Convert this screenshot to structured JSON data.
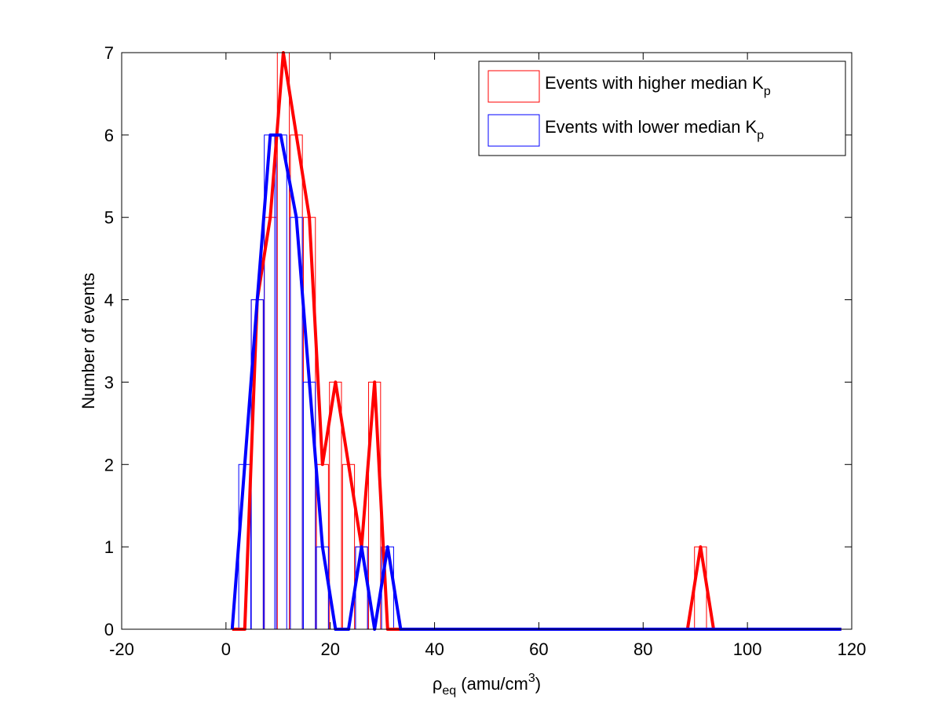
{
  "chart_data": {
    "type": "bar",
    "xlabel": {
      "main": "ρ",
      "sub": "eq",
      "rest": " (amu/cm",
      "sup": "3",
      "close": ")"
    },
    "ylabel": "Number of events",
    "xlim": [
      -20,
      120
    ],
    "ylim": [
      0,
      7
    ],
    "xticks": [
      "-20",
      "0",
      "20",
      "40",
      "60",
      "80",
      "100",
      "120"
    ],
    "yticks": [
      "0",
      "1",
      "2",
      "3",
      "4",
      "5",
      "6",
      "7"
    ],
    "grid": false,
    "legend_position": "top-right",
    "series": [
      {
        "name": {
          "main": "Events with higher median K",
          "sub": "p"
        },
        "color": "#ff0000",
        "bins": [
          {
            "x": 1.2,
            "y": 0
          },
          {
            "x": 3.6,
            "y": 0
          },
          {
            "x": 6.0,
            "y": 4
          },
          {
            "x": 8.5,
            "y": 5
          },
          {
            "x": 11.0,
            "y": 7
          },
          {
            "x": 13.5,
            "y": 6
          },
          {
            "x": 16.0,
            "y": 5
          },
          {
            "x": 18.5,
            "y": 2
          },
          {
            "x": 21.0,
            "y": 3
          },
          {
            "x": 23.5,
            "y": 2
          },
          {
            "x": 26.0,
            "y": 1
          },
          {
            "x": 28.5,
            "y": 3
          },
          {
            "x": 31.0,
            "y": 0
          },
          {
            "x": 33.5,
            "y": 0
          },
          {
            "x": 88.5,
            "y": 0
          },
          {
            "x": 91.0,
            "y": 1
          },
          {
            "x": 93.5,
            "y": 0
          },
          {
            "x": 118.0,
            "y": 0
          }
        ]
      },
      {
        "name": {
          "main": "Events with lower median K",
          "sub": "p"
        },
        "color": "#0000ff",
        "bins": [
          {
            "x": 1.2,
            "y": 0
          },
          {
            "x": 3.6,
            "y": 2
          },
          {
            "x": 6.0,
            "y": 4
          },
          {
            "x": 8.5,
            "y": 6
          },
          {
            "x": 10.5,
            "y": 6
          },
          {
            "x": 13.5,
            "y": 5
          },
          {
            "x": 16.0,
            "y": 3
          },
          {
            "x": 18.5,
            "y": 1
          },
          {
            "x": 21.0,
            "y": 0
          },
          {
            "x": 23.5,
            "y": 0
          },
          {
            "x": 26.0,
            "y": 1
          },
          {
            "x": 28.5,
            "y": 0
          },
          {
            "x": 31.0,
            "y": 1
          },
          {
            "x": 33.5,
            "y": 0
          },
          {
            "x": 118.0,
            "y": 0
          }
        ]
      }
    ]
  }
}
